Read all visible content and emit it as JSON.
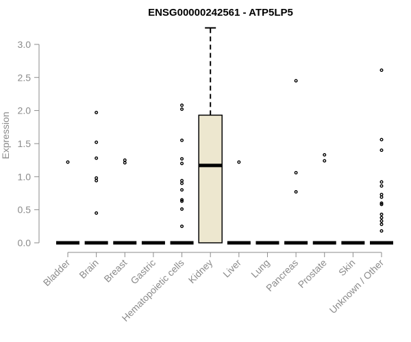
{
  "chart_data": {
    "type": "boxplot",
    "title": "ENSG00000242561 - ATP5LP5",
    "xlabel": "",
    "ylabel": "Expression",
    "ylim": [
      0,
      3.0
    ],
    "yticks": [
      "0.0",
      "0.5",
      "1.0",
      "1.5",
      "2.0",
      "2.5",
      "3.0"
    ],
    "categories": [
      "Bladder",
      "Brain",
      "Breast",
      "Gastric",
      "Hematopoietic cells",
      "Kidney",
      "Liver",
      "Lung",
      "Pancreas",
      "Prostate",
      "Skin",
      "Unknown / Other"
    ],
    "boxes": [
      {
        "category": "Bladder",
        "q1": 0,
        "median": 0,
        "q3": 0,
        "whisker_low": 0,
        "whisker_high": 0,
        "fill": "#f0ead2",
        "outliers": [
          1.22
        ]
      },
      {
        "category": "Brain",
        "q1": 0,
        "median": 0,
        "q3": 0,
        "whisker_low": 0,
        "whisker_high": 0,
        "fill": "#f0ead2",
        "outliers": [
          1.97,
          1.52,
          1.28,
          0.98,
          0.94,
          0.45
        ]
      },
      {
        "category": "Breast",
        "q1": 0,
        "median": 0,
        "q3": 0,
        "whisker_low": 0,
        "whisker_high": 0,
        "fill": "#f0ead2",
        "outliers": [
          1.25,
          1.21
        ]
      },
      {
        "category": "Gastric",
        "q1": 0,
        "median": 0,
        "q3": 0,
        "whisker_low": 0,
        "whisker_high": 0,
        "fill": "#f0ead2",
        "outliers": []
      },
      {
        "category": "Hematopoietic cells",
        "q1": 0,
        "median": 0,
        "q3": 0,
        "whisker_low": 0,
        "whisker_high": 0,
        "fill": "#f0ead2",
        "outliers": [
          2.08,
          2.02,
          1.55,
          1.27,
          1.2,
          0.94,
          0.9,
          0.8,
          0.65,
          0.63,
          0.51,
          0.25
        ]
      },
      {
        "category": "Kidney",
        "q1": 0,
        "median": 1.17,
        "q3": 1.93,
        "whisker_low": 0,
        "whisker_high": 3.25,
        "fill": "#ede7cf",
        "outliers": []
      },
      {
        "category": "Liver",
        "q1": 0,
        "median": 0,
        "q3": 0,
        "whisker_low": 0,
        "whisker_high": 0,
        "fill": "#f0ead2",
        "outliers": [
          1.22
        ]
      },
      {
        "category": "Lung",
        "q1": 0,
        "median": 0,
        "q3": 0,
        "whisker_low": 0,
        "whisker_high": 0,
        "fill": "#f0ead2",
        "outliers": []
      },
      {
        "category": "Pancreas",
        "q1": 0,
        "median": 0,
        "q3": 0,
        "whisker_low": 0,
        "whisker_high": 0,
        "fill": "#f0ead2",
        "outliers": [
          2.45,
          1.06,
          0.77
        ]
      },
      {
        "category": "Prostate",
        "q1": 0,
        "median": 0,
        "q3": 0,
        "whisker_low": 0,
        "whisker_high": 0,
        "fill": "#f0ead2",
        "outliers": [
          1.33,
          1.24
        ]
      },
      {
        "category": "Skin",
        "q1": 0,
        "median": 0,
        "q3": 0,
        "whisker_low": 0,
        "whisker_high": 0,
        "fill": "#f0ead2",
        "outliers": []
      },
      {
        "category": "Unknown / Other",
        "q1": 0,
        "median": 0,
        "q3": 0,
        "whisker_low": 0,
        "whisker_high": 0,
        "fill": "#f0ead2",
        "outliers": [
          2.61,
          1.56,
          1.4,
          0.92,
          0.86,
          0.73,
          0.69,
          0.6,
          0.58,
          0.43,
          0.38,
          0.33,
          0.28,
          0.18
        ]
      }
    ],
    "grid": false,
    "legend": "none",
    "colors": {
      "axis": "#8a8a8a",
      "box_fill": "#ede7cf",
      "box_stroke": "#000000",
      "title": "#000000"
    }
  }
}
